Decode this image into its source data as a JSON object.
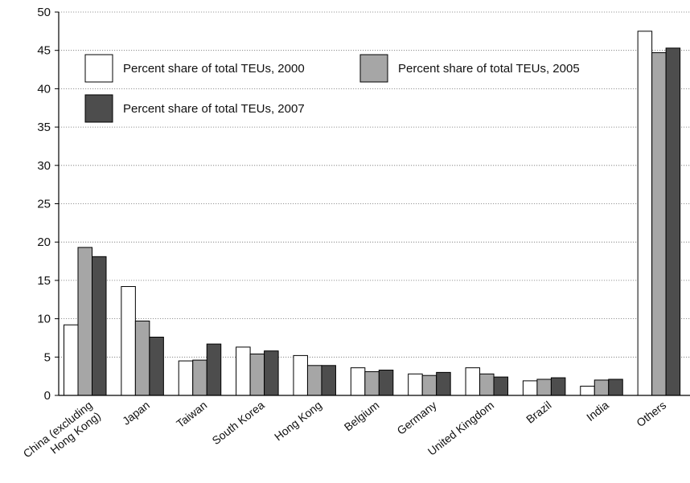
{
  "chart_data": {
    "type": "bar",
    "title": "",
    "xlabel": "",
    "ylabel": "",
    "ylim": [
      0,
      50
    ],
    "yticks": [
      0,
      5,
      10,
      15,
      20,
      25,
      30,
      35,
      40,
      45,
      50
    ],
    "grid": "horizontal-dotted",
    "legend_position": "top-left",
    "categories": [
      [
        "China (excluding",
        "Hong Kong)"
      ],
      [
        "Japan"
      ],
      [
        "Taiwan"
      ],
      [
        "South Korea"
      ],
      [
        "Hong Kong"
      ],
      [
        "Belgium"
      ],
      [
        "Germany"
      ],
      [
        "United Kingdom"
      ],
      [
        "Brazil"
      ],
      [
        "India"
      ],
      [
        "Others"
      ]
    ],
    "series": [
      {
        "name": "Percent share of total TEUs, 2000",
        "color": "#ffffff",
        "values": [
          9.2,
          14.2,
          4.5,
          6.3,
          5.2,
          3.6,
          2.8,
          3.6,
          1.9,
          1.2,
          47.5
        ]
      },
      {
        "name": "Percent share of total TEUs, 2005",
        "color": "#a6a6a6",
        "values": [
          19.3,
          9.7,
          4.6,
          5.4,
          3.9,
          3.1,
          2.6,
          2.8,
          2.1,
          2.0,
          44.7
        ]
      },
      {
        "name": "Percent share of total TEUs, 2007",
        "color": "#4d4d4d",
        "values": [
          18.1,
          7.6,
          6.7,
          5.8,
          3.9,
          3.3,
          3.0,
          2.4,
          2.3,
          2.1,
          45.3
        ]
      }
    ]
  }
}
